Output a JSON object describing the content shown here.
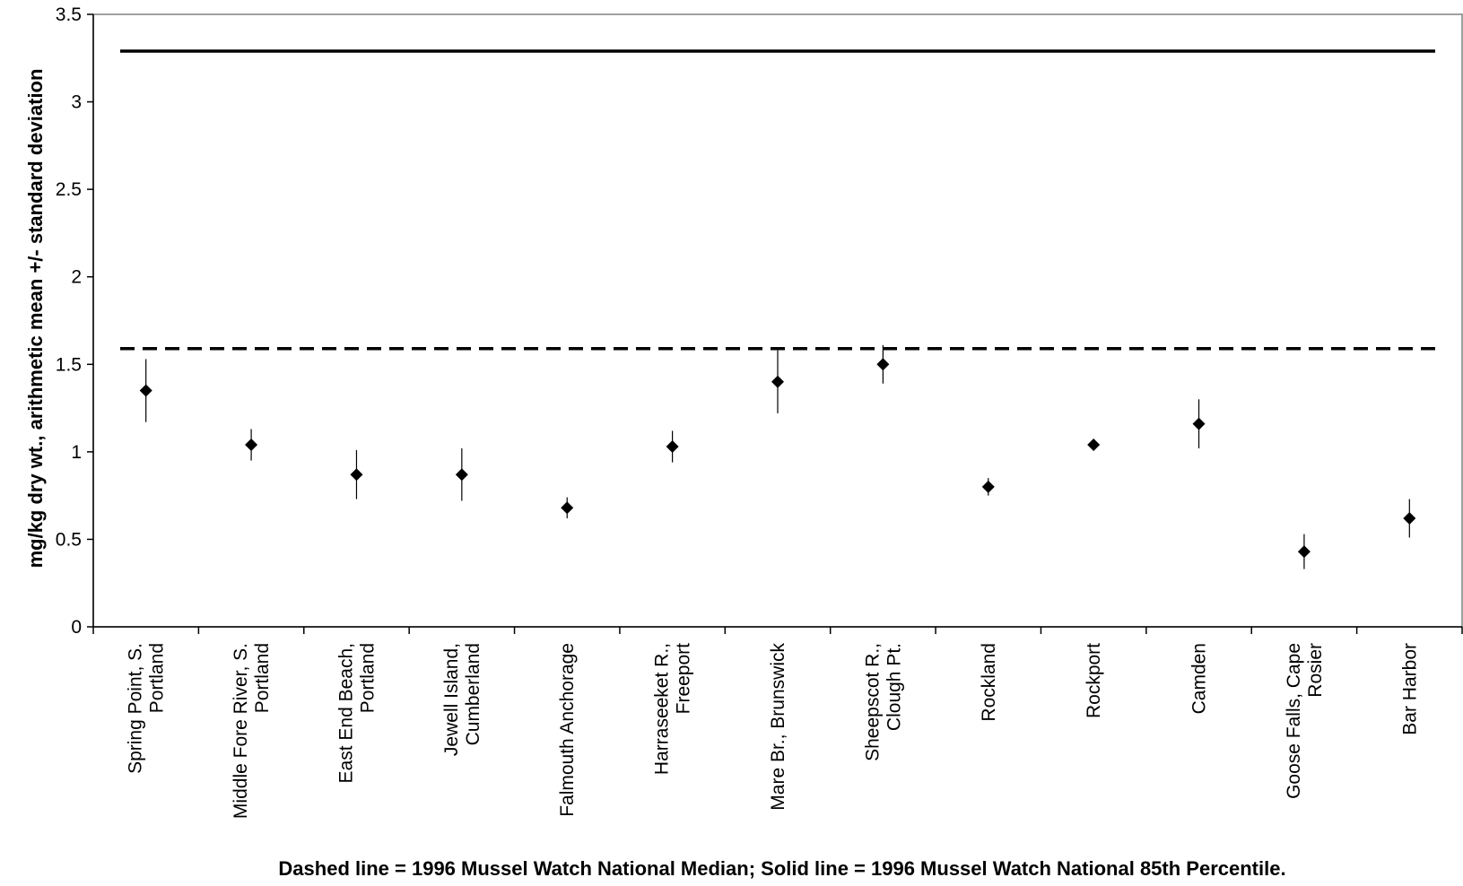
{
  "chart_data": {
    "type": "scatter",
    "title": "",
    "ylabel": "mg/kg dry wt., arithmetic mean +/- standard deviation",
    "xlabel": "Dashed line = 1996 Mussel Watch National Median; Solid line = 1996 Mussel Watch National 85th Percentile.",
    "ylim": [
      0,
      3.5
    ],
    "yticks": [
      "0",
      "0.5",
      "1",
      "1.5",
      "2",
      "2.5",
      "3",
      "3.5"
    ],
    "grid": false,
    "legend": "none",
    "marker": "diamond",
    "marker_color": "#000000",
    "categories": [
      [
        "Spring Point, S.",
        "Portland"
      ],
      [
        "Middle Fore River, S.",
        "Portland"
      ],
      [
        "East End Beach,",
        "Portland"
      ],
      [
        "Jewell Island,",
        "Cumberland"
      ],
      [
        "Falmouth Anchorage"
      ],
      [
        "Harraseeket R.,",
        "Freeport"
      ],
      [
        "Mare Br., Brunswick"
      ],
      [
        "Sheepscot R.,",
        "Clough Pt."
      ],
      [
        "Rockland"
      ],
      [
        "Rockport"
      ],
      [
        "Camden"
      ],
      [
        "Goose Falls, Cape",
        "Rosier"
      ],
      [
        "Bar Harbor"
      ]
    ],
    "values": [
      1.35,
      1.04,
      0.87,
      0.87,
      0.68,
      1.03,
      1.4,
      1.5,
      0.8,
      1.04,
      1.16,
      0.43,
      0.62
    ],
    "std_dev": [
      0.18,
      0.09,
      0.14,
      0.15,
      0.06,
      0.09,
      0.18,
      0.11,
      0.05,
      0.02,
      0.14,
      0.1,
      0.11
    ],
    "reference_lines": [
      {
        "style": "dashed",
        "value": 1.59
      },
      {
        "style": "solid",
        "value": 3.29
      }
    ]
  }
}
